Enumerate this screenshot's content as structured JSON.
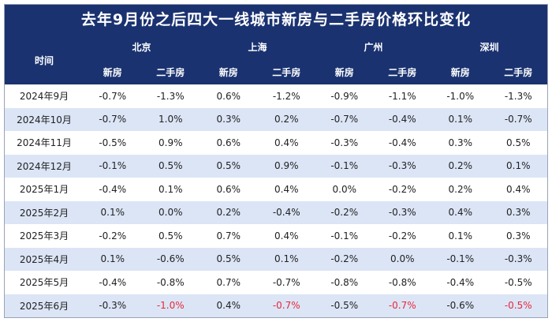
{
  "title": "去年9月份之后四大一线城市新房与二手房价格环比变化",
  "header": {
    "time_label": "时间",
    "cities": [
      "北京",
      "上海",
      "广州",
      "深圳"
    ],
    "sub": [
      "新房",
      "二手房"
    ]
  },
  "colors": {
    "header_bg": "#1a3270",
    "stripe": "#dbe5f6",
    "highlight": "#e8283a"
  },
  "rows": [
    {
      "time": "2024年9月",
      "values": [
        "-0.7%",
        "-1.3%",
        "0.6%",
        "-1.2%",
        "-0.9%",
        "-1.1%",
        "-1.0%",
        "-1.3%"
      ]
    },
    {
      "time": "2024年10月",
      "values": [
        "-0.7%",
        "1.0%",
        "0.3%",
        "0.2%",
        "-0.7%",
        "-0.4%",
        "0.1%",
        "-0.7%"
      ]
    },
    {
      "time": "2024年11月",
      "values": [
        "-0.5%",
        "0.9%",
        "0.6%",
        "0.4%",
        "-0.3%",
        "-0.4%",
        "0.3%",
        "0.5%"
      ]
    },
    {
      "time": "2024年12月",
      "values": [
        "-0.1%",
        "0.5%",
        "0.5%",
        "0.9%",
        "-0.1%",
        "-0.3%",
        "0.2%",
        "0.1%"
      ]
    },
    {
      "time": "2025年1月",
      "values": [
        "-0.4%",
        "0.1%",
        "0.6%",
        "0.4%",
        "0.0%",
        "-0.2%",
        "0.2%",
        "0.4%"
      ]
    },
    {
      "time": "2025年2月",
      "values": [
        "0.1%",
        "0.0%",
        "0.2%",
        "-0.4%",
        "-0.2%",
        "-0.3%",
        "0.4%",
        "0.3%"
      ]
    },
    {
      "time": "2025年3月",
      "values": [
        "-0.2%",
        "0.5%",
        "0.7%",
        "0.4%",
        "-0.1%",
        "-0.2%",
        "0.1%",
        "0.3%"
      ]
    },
    {
      "time": "2025年4月",
      "values": [
        "0.1%",
        "-0.6%",
        "0.5%",
        "0.1%",
        "-0.2%",
        "0.0%",
        "-0.1%",
        "-0.3%"
      ]
    },
    {
      "time": "2025年5月",
      "values": [
        "-0.4%",
        "-0.8%",
        "0.7%",
        "-0.7%",
        "-0.8%",
        "-0.8%",
        "-0.4%",
        "-0.5%"
      ]
    },
    {
      "time": "2025年6月",
      "values": [
        "-0.3%",
        "-1.0%",
        "0.4%",
        "-0.7%",
        "-0.5%",
        "-0.7%",
        "-0.6%",
        "-0.5%"
      ],
      "red_cols": [
        1,
        3,
        5,
        7
      ]
    }
  ]
}
